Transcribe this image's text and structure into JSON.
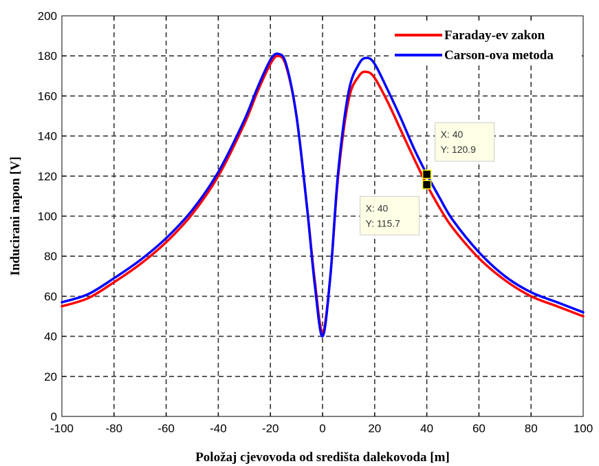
{
  "chart_data": {
    "type": "line",
    "xlabel": "Položaj cjevovoda od središta dalekovoda [m]",
    "ylabel": "Inducirani napon [V]",
    "xlim": [
      -100,
      100
    ],
    "ylim": [
      0,
      200
    ],
    "xticks": [
      "-100",
      "-80",
      "-60",
      "-40",
      "-20",
      "0",
      "20",
      "40",
      "60",
      "80",
      "100"
    ],
    "yticks": [
      "0",
      "20",
      "40",
      "60",
      "80",
      "100",
      "120",
      "140",
      "160",
      "180",
      "200"
    ],
    "grid": true,
    "legend_position": "top-right",
    "series": [
      {
        "name": "Faraday-ev zakon",
        "color": "#ff0000",
        "x": [
          -100,
          -90,
          -80,
          -70,
          -60,
          -50,
          -40,
          -30,
          -25,
          -20,
          -17,
          -14,
          -10,
          -6,
          -3,
          0,
          3,
          6,
          10,
          14,
          17,
          20,
          25,
          30,
          35,
          40,
          45,
          50,
          60,
          70,
          80,
          90,
          100
        ],
        "y": [
          55,
          59,
          67,
          76,
          87,
          101,
          120,
          146,
          162,
          176,
          180,
          175,
          150,
          105,
          68,
          42,
          70,
          120,
          158,
          170,
          172,
          169,
          157,
          143,
          129,
          115.7,
          104,
          94,
          79,
          68,
          60,
          55,
          50
        ]
      },
      {
        "name": "Carson-ova metoda",
        "color": "#0000ff",
        "x": [
          -100,
          -90,
          -80,
          -70,
          -60,
          -50,
          -40,
          -30,
          -25,
          -20,
          -17,
          -14,
          -10,
          -6,
          -3,
          0,
          3,
          6,
          10,
          14,
          17,
          20,
          25,
          30,
          35,
          40,
          45,
          50,
          60,
          70,
          80,
          90,
          100
        ],
        "y": [
          57,
          61,
          69,
          78,
          89,
          103,
          122,
          148,
          164,
          178,
          181,
          176,
          150,
          105,
          66,
          40,
          70,
          122,
          162,
          176,
          179,
          176,
          163,
          149,
          134,
          120.9,
          109,
          98,
          82,
          70,
          62,
          57,
          52
        ]
      }
    ],
    "datatips": [
      {
        "series": "Carson-ova metoda",
        "x_text": "X: 40",
        "y_text": "Y: 120.9",
        "x": 40,
        "y": 120.9
      },
      {
        "series": "Faraday-ev zakon",
        "x_text": "X: 40",
        "y_text": "Y: 115.7",
        "x": 40,
        "y": 115.7
      }
    ]
  }
}
